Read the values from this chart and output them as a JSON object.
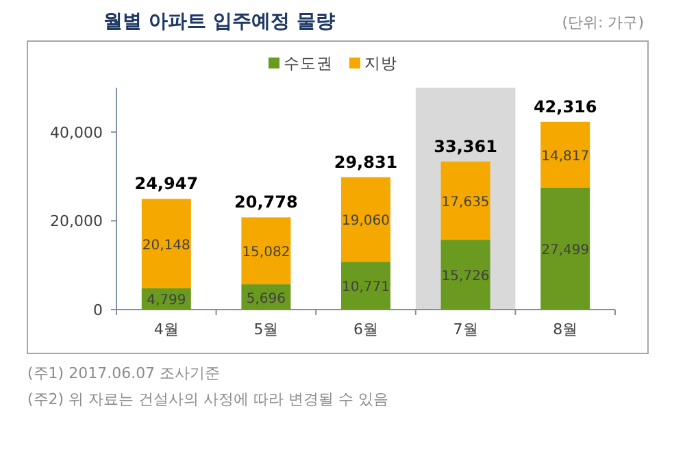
{
  "chart_data": {
    "type": "bar",
    "title": "월별 아파트 입주예정 물량",
    "subtitle": "(단위: 가구)",
    "categories": [
      "4월",
      "5월",
      "6월",
      "7월",
      "8월"
    ],
    "series": [
      {
        "name": "수도권",
        "color": "#6a9a1f",
        "values": [
          4799,
          5696,
          10771,
          15726,
          27499
        ],
        "value_labels": [
          "4,799",
          "5,696",
          "10,771",
          "15,726",
          "27,499"
        ]
      },
      {
        "name": "지방",
        "color": "#f5a800",
        "values": [
          20148,
          15082,
          19060,
          17635,
          14817
        ],
        "value_labels": [
          "20,148",
          "15,082",
          "19,060",
          "17,635",
          "14,817"
        ]
      }
    ],
    "stacked": true,
    "totals": [
      "24,947",
      "20,778",
      "29,831",
      "33,361",
      "42,316"
    ],
    "ylim": [
      0,
      50000
    ],
    "yticks": [
      {
        "value": 0,
        "label": "0"
      },
      {
        "value": 20000,
        "label": "20,000"
      },
      {
        "value": 40000,
        "label": "40,000"
      }
    ],
    "bands": [
      {
        "axis": "x",
        "from": "7월",
        "to": "7월",
        "color": "#d9d9d9"
      }
    ],
    "legend": "top",
    "annotations": [
      "(주1) 2017.06.07 조사기준",
      "(주2) 위 자료는 건설사의 사정에 따라 변경될 수 있음"
    ]
  }
}
